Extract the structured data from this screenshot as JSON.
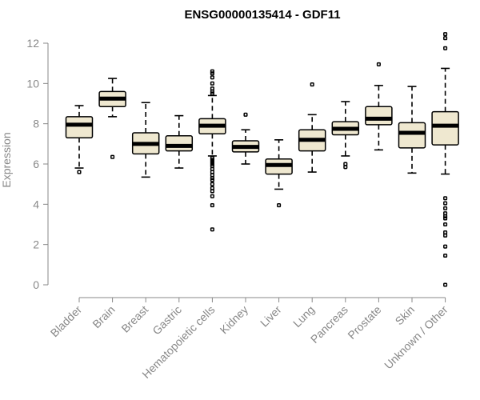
{
  "chart_data": {
    "type": "boxplot",
    "title": "ENSG00000135414 - GDF11",
    "xlabel": "",
    "ylabel": "Expression",
    "ylim": [
      0,
      12
    ],
    "yticks": [
      0,
      2,
      4,
      6,
      8,
      10,
      12
    ],
    "grid": false,
    "categories": [
      "Bladder",
      "Brain",
      "Breast",
      "Gastric",
      "Hematopoietic cells",
      "Kidney",
      "Liver",
      "Lung",
      "Pancreas",
      "Prostate",
      "Skin",
      "Unknown / Other"
    ],
    "boxes": [
      {
        "category": "Bladder",
        "whisker_low": 5.8,
        "q1": 7.3,
        "median": 7.95,
        "q3": 8.35,
        "whisker_high": 8.9,
        "outliers": [
          5.6
        ]
      },
      {
        "category": "Brain",
        "whisker_low": 8.35,
        "q1": 8.85,
        "median": 9.25,
        "q3": 9.6,
        "whisker_high": 10.25,
        "outliers": [
          6.35
        ]
      },
      {
        "category": "Breast",
        "whisker_low": 5.35,
        "q1": 6.5,
        "median": 7.0,
        "q3": 7.55,
        "whisker_high": 9.05,
        "outliers": []
      },
      {
        "category": "Gastric",
        "whisker_low": 5.8,
        "q1": 6.65,
        "median": 6.9,
        "q3": 7.4,
        "whisker_high": 8.4,
        "outliers": []
      },
      {
        "category": "Hematopoietic cells",
        "whisker_low": 6.4,
        "q1": 7.5,
        "median": 7.9,
        "q3": 8.25,
        "whisker_high": 9.4,
        "outliers": [
          10.6,
          10.5,
          10.3,
          10.0,
          9.75,
          9.6,
          9.5,
          6.3,
          6.2,
          6.1,
          6.0,
          5.9,
          5.75,
          5.6,
          5.45,
          5.3,
          5.2,
          5.0,
          4.8,
          4.65,
          4.4,
          3.95,
          2.75
        ]
      },
      {
        "category": "Kidney",
        "whisker_low": 6.0,
        "q1": 6.6,
        "median": 6.85,
        "q3": 7.15,
        "whisker_high": 7.7,
        "outliers": [
          8.45
        ]
      },
      {
        "category": "Liver",
        "whisker_low": 4.75,
        "q1": 5.5,
        "median": 5.95,
        "q3": 6.25,
        "whisker_high": 7.2,
        "outliers": [
          3.95
        ]
      },
      {
        "category": "Lung",
        "whisker_low": 5.6,
        "q1": 6.65,
        "median": 7.2,
        "q3": 7.7,
        "whisker_high": 8.45,
        "outliers": [
          9.95
        ]
      },
      {
        "category": "Pancreas",
        "whisker_low": 6.4,
        "q1": 7.45,
        "median": 7.75,
        "q3": 8.1,
        "whisker_high": 9.1,
        "outliers": [
          6.0,
          5.85
        ]
      },
      {
        "category": "Prostate",
        "whisker_low": 6.7,
        "q1": 7.95,
        "median": 8.25,
        "q3": 8.85,
        "whisker_high": 9.9,
        "outliers": [
          10.95
        ]
      },
      {
        "category": "Skin",
        "whisker_low": 5.55,
        "q1": 6.8,
        "median": 7.55,
        "q3": 8.05,
        "whisker_high": 9.85,
        "outliers": []
      },
      {
        "category": "Unknown / Other",
        "whisker_low": 5.5,
        "q1": 6.95,
        "median": 7.9,
        "q3": 8.6,
        "whisker_high": 10.75,
        "outliers": [
          12.45,
          12.25,
          11.75,
          4.3,
          4.05,
          3.8,
          3.55,
          3.4,
          3.3,
          3.0,
          2.6,
          2.45,
          1.9,
          1.45,
          0.0
        ]
      }
    ],
    "colors": {
      "box_fill": "#efe8d0",
      "stroke": "#000000",
      "axis": "#888888"
    }
  }
}
